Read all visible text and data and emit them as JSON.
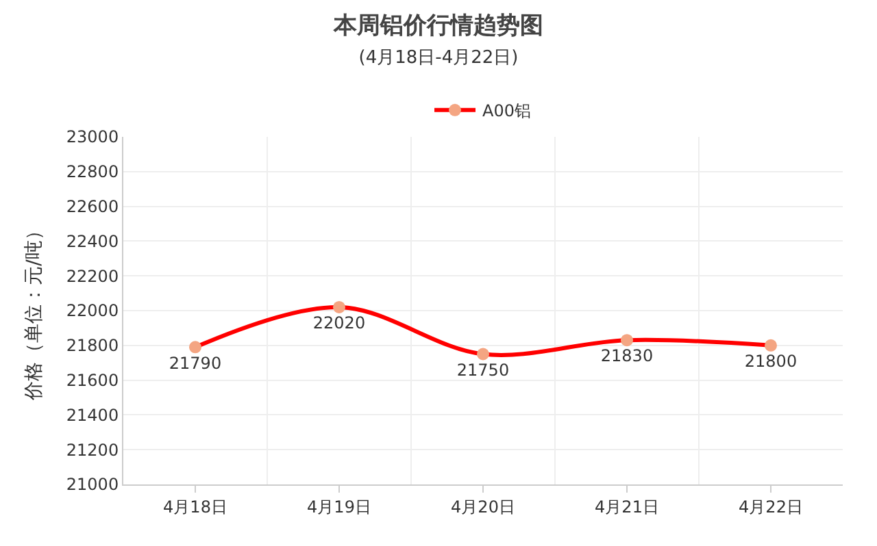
{
  "chart_data": {
    "type": "line",
    "title": "本周铝价行情趋势图",
    "subtitle": "(4月18日-4月22日)",
    "ylabel": "价格（单位：元/吨）",
    "categories": [
      "4月18日",
      "4月19日",
      "4月20日",
      "4月21日",
      "4月22日"
    ],
    "series": [
      {
        "name": "A00铝",
        "color": "#ff0000",
        "values": [
          21790,
          22020,
          21750,
          21830,
          21800
        ]
      }
    ],
    "ylim": [
      21000,
      23000
    ],
    "yticks": [
      21000,
      21200,
      21400,
      21600,
      21800,
      22000,
      22200,
      22400,
      22600,
      22800,
      23000
    ],
    "grid": true,
    "legend": "top",
    "marker": "circle",
    "line_style": "solid",
    "data_labels": true
  }
}
